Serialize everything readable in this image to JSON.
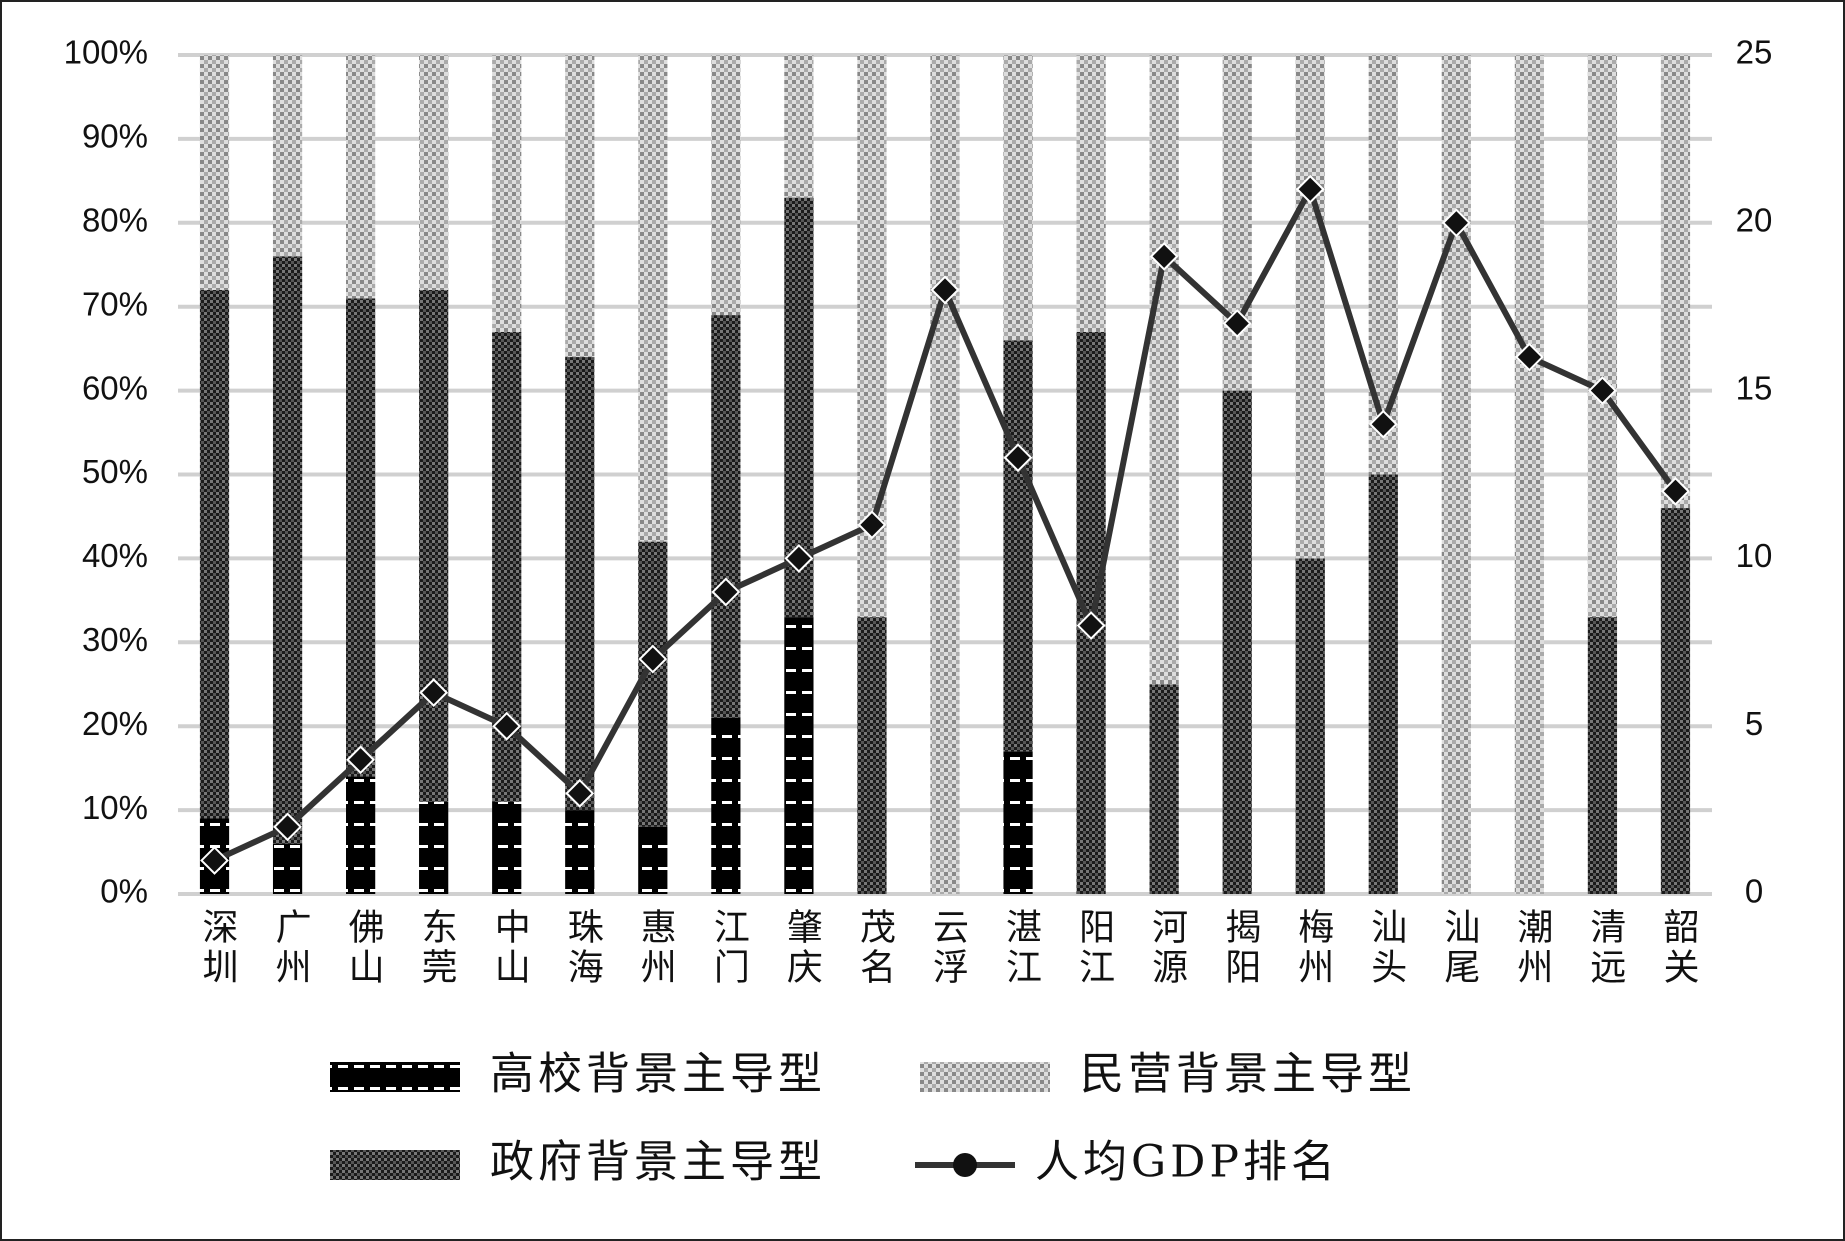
{
  "chart_data": {
    "type": "stacked-bar-line",
    "categories": [
      "深圳",
      "广州",
      "佛山",
      "东莞",
      "中山",
      "珠海",
      "惠州",
      "江门",
      "肇庆",
      "茂名",
      "云浮",
      "湛江",
      "阳江",
      "河源",
      "揭阳",
      "梅州",
      "汕头",
      "汕尾",
      "潮州",
      "清远",
      "韶关"
    ],
    "series": [
      {
        "name": "高校背景主导型",
        "values": [
          9,
          6,
          14,
          11,
          11,
          10,
          8,
          21,
          33,
          0,
          0,
          17,
          0,
          0,
          0,
          0,
          0,
          0,
          0,
          0,
          0
        ]
      },
      {
        "name": "政府背景主导型",
        "values": [
          63,
          70,
          57,
          61,
          56,
          54,
          34,
          48,
          50,
          33,
          0,
          49,
          67,
          25,
          60,
          40,
          50,
          0,
          0,
          33,
          46
        ]
      },
      {
        "name": "民营背景主导型",
        "values": [
          28,
          24,
          29,
          28,
          33,
          36,
          58,
          31,
          17,
          67,
          100,
          34,
          33,
          75,
          40,
          60,
          50,
          100,
          100,
          67,
          54
        ]
      },
      {
        "name": "人均GDP排名",
        "type": "line",
        "axis": "y2",
        "color": "#333333",
        "values": [
          1,
          2,
          4,
          6,
          5,
          3,
          7,
          9,
          10,
          11,
          18,
          13,
          8,
          19,
          17,
          21,
          14,
          20,
          16,
          15,
          12
        ]
      }
    ],
    "ylim": [
      0,
      100
    ],
    "yticks": [
      {
        "value": 0,
        "label": "0%"
      },
      {
        "value": 10,
        "label": "10%"
      },
      {
        "value": 20,
        "label": "20%"
      },
      {
        "value": 30,
        "label": "30%"
      },
      {
        "value": 40,
        "label": "40%"
      },
      {
        "value": 50,
        "label": "50%"
      },
      {
        "value": 60,
        "label": "60%"
      },
      {
        "value": 70,
        "label": "70%"
      },
      {
        "value": 80,
        "label": "80%"
      },
      {
        "value": 90,
        "label": "90%"
      },
      {
        "value": 100,
        "label": "100%"
      }
    ],
    "y2lim": [
      0,
      25
    ],
    "y2ticks": [
      0,
      5,
      10,
      15,
      20,
      25
    ],
    "grid": true
  }
}
